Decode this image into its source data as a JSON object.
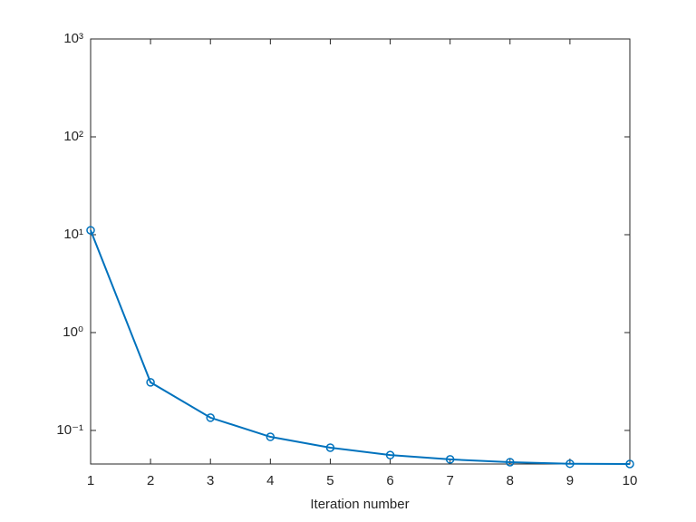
{
  "chart_data": {
    "type": "line",
    "xlabel": "Iteration number",
    "x": [
      1,
      2,
      3,
      4,
      5,
      6,
      7,
      8,
      9,
      10
    ],
    "series": [
      {
        "color": "#0072bd",
        "marker": "circle",
        "values": [
          11.1,
          0.31,
          0.135,
          0.086,
          0.0667,
          0.056,
          0.0506,
          0.0474,
          0.0457,
          0.0454
        ]
      }
    ],
    "xlim": [
      1,
      10
    ],
    "xticks": [
      1,
      2,
      3,
      4,
      5,
      6,
      7,
      8,
      9,
      10
    ],
    "ylim": [
      0.0454,
      1000
    ],
    "yscale": "log",
    "yticks": [
      {
        "value": 0.1,
        "label": "10⁻¹"
      },
      {
        "value": 1,
        "label": "10⁰"
      },
      {
        "value": 10,
        "label": "10¹"
      },
      {
        "value": 100,
        "label": "10²"
      },
      {
        "value": 1000,
        "label": "10³"
      }
    ],
    "grid": false
  }
}
